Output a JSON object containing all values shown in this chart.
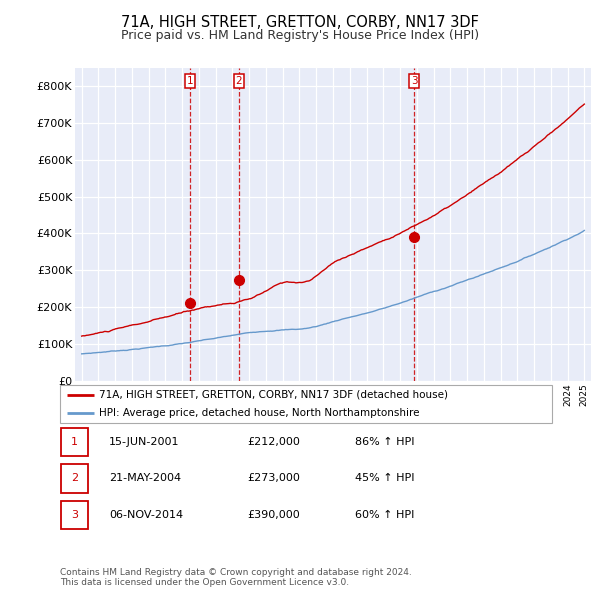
{
  "title": "71A, HIGH STREET, GRETTON, CORBY, NN17 3DF",
  "subtitle": "Price paid vs. HM Land Registry's House Price Index (HPI)",
  "ylim": [
    0,
    850000
  ],
  "yticks": [
    0,
    100000,
    200000,
    300000,
    400000,
    500000,
    600000,
    700000,
    800000
  ],
  "ytick_labels": [
    "£0",
    "£100K",
    "£200K",
    "£300K",
    "£400K",
    "£500K",
    "£600K",
    "£700K",
    "£800K"
  ],
  "sale_dates": [
    2001.46,
    2004.39,
    2014.85
  ],
  "sale_prices": [
    212000,
    273000,
    390000
  ],
  "sale_labels": [
    "1",
    "2",
    "3"
  ],
  "sale_line_color": "#cc0000",
  "hpi_line_color": "#6699cc",
  "vline_color": "#cc0000",
  "background_color": "#e8ecf8",
  "grid_color": "#ffffff",
  "legend_label_red": "71A, HIGH STREET, GRETTON, CORBY, NN17 3DF (detached house)",
  "legend_label_blue": "HPI: Average price, detached house, North Northamptonshire",
  "table_entries": [
    {
      "num": "1",
      "date": "15-JUN-2001",
      "price": "£212,000",
      "change": "86% ↑ HPI"
    },
    {
      "num": "2",
      "date": "21-MAY-2004",
      "price": "£273,000",
      "change": "45% ↑ HPI"
    },
    {
      "num": "3",
      "date": "06-NOV-2014",
      "price": "£390,000",
      "change": "60% ↑ HPI"
    }
  ],
  "footnote": "Contains HM Land Registry data © Crown copyright and database right 2024.\nThis data is licensed under the Open Government Licence v3.0.",
  "title_fontsize": 10.5,
  "subtitle_fontsize": 9
}
